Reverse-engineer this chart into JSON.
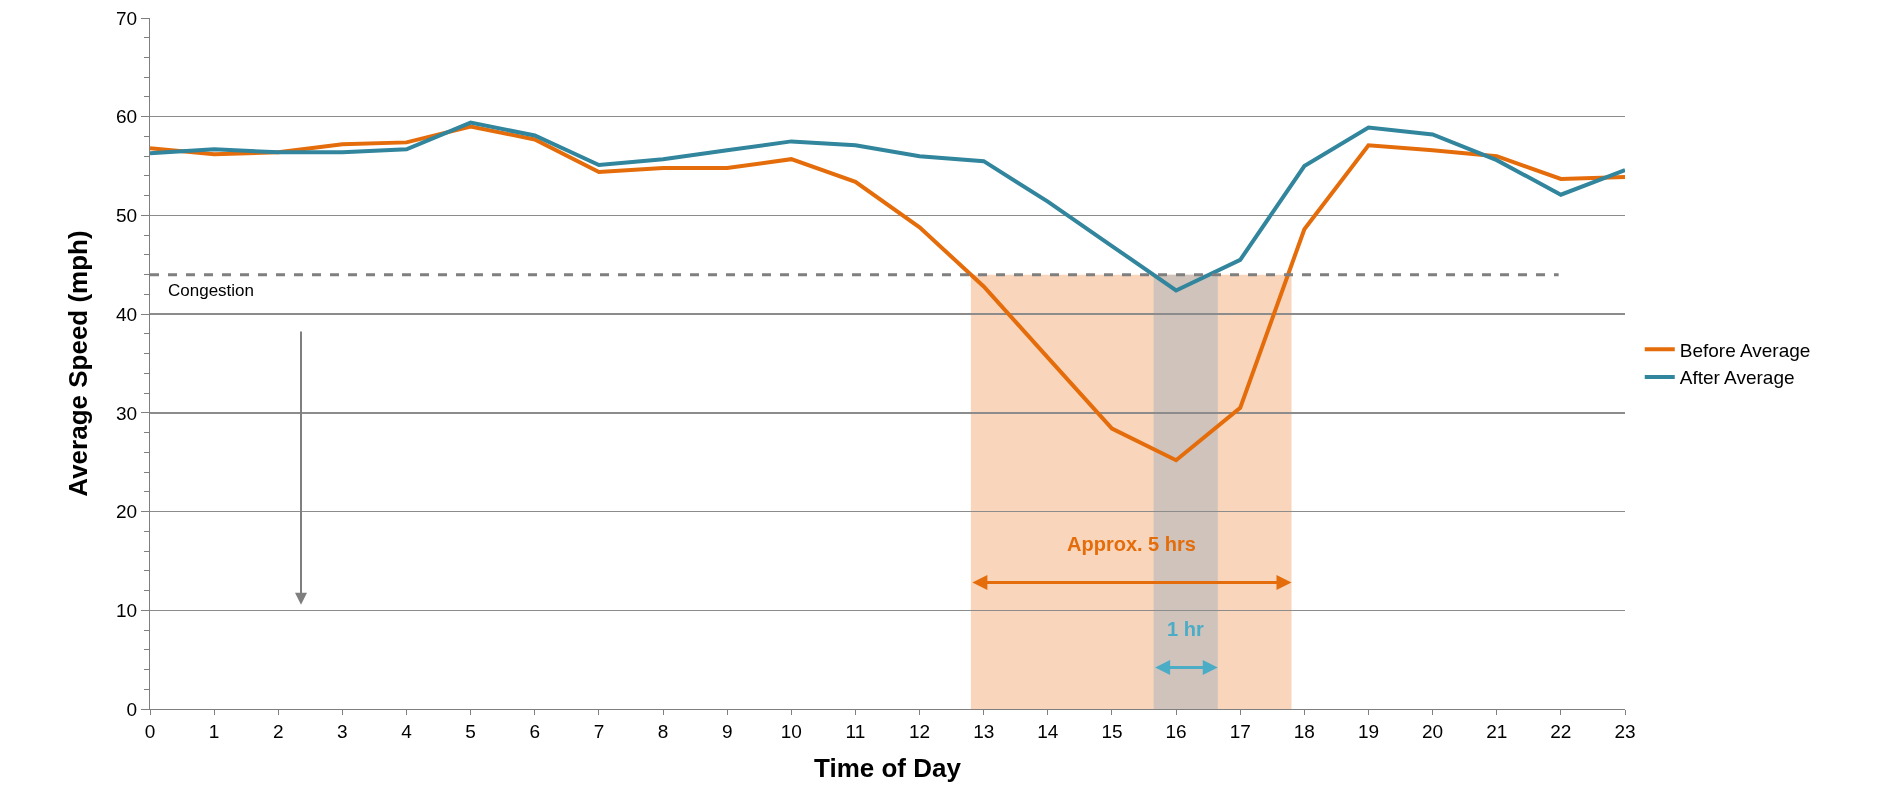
{
  "chart_data": {
    "type": "line",
    "xlabel": "Time of Day",
    "ylabel": "Average Speed (mph)",
    "x": [
      0,
      1,
      2,
      3,
      4,
      5,
      6,
      7,
      8,
      9,
      10,
      11,
      12,
      13,
      14,
      15,
      16,
      17,
      18,
      19,
      20,
      21,
      22,
      23
    ],
    "series": [
      {
        "name": "Before Average",
        "color": "#e46c0a",
        "values": [
          56.8,
          56.2,
          56.4,
          57.2,
          57.4,
          59.0,
          57.7,
          54.4,
          54.8,
          54.8,
          55.7,
          53.4,
          48.8,
          42.8,
          35.6,
          28.4,
          25.2,
          30.5,
          48.6,
          57.1,
          56.6,
          56.0,
          53.7,
          53.9
        ]
      },
      {
        "name": "After Average",
        "color": "#31859c",
        "values": [
          56.3,
          56.7,
          56.4,
          56.4,
          56.7,
          59.4,
          58.1,
          55.1,
          55.7,
          56.6,
          57.5,
          57.1,
          56.0,
          55.5,
          51.4,
          46.9,
          42.4,
          45.5,
          55.0,
          58.9,
          58.2,
          55.6,
          52.1,
          54.6
        ]
      }
    ],
    "xlim": [
      0,
      23
    ],
    "xticks": [
      0,
      1,
      2,
      3,
      4,
      5,
      6,
      7,
      8,
      9,
      10,
      11,
      12,
      13,
      14,
      15,
      16,
      17,
      18,
      19,
      20,
      21,
      22,
      23
    ],
    "ylim": [
      0,
      70
    ],
    "yticks": [
      0,
      10,
      20,
      30,
      40,
      50,
      60,
      70
    ],
    "grid": "y",
    "legend": "right",
    "marker": "none",
    "line_style": "solid",
    "ref_lines": [
      {
        "axis": "y",
        "value": 44,
        "label": "Congestion",
        "color": "#7f7f7f",
        "line_style": "dashed"
      }
    ],
    "bands": [
      {
        "axis": "x",
        "from": 12.8,
        "to": 17.8,
        "color": "#f8d5bb",
        "label": "Approx. 5 hrs"
      },
      {
        "axis": "x",
        "from": 15.65,
        "to": 16.65,
        "color": "#c9bfbc",
        "label": "1 hr"
      }
    ]
  }
}
